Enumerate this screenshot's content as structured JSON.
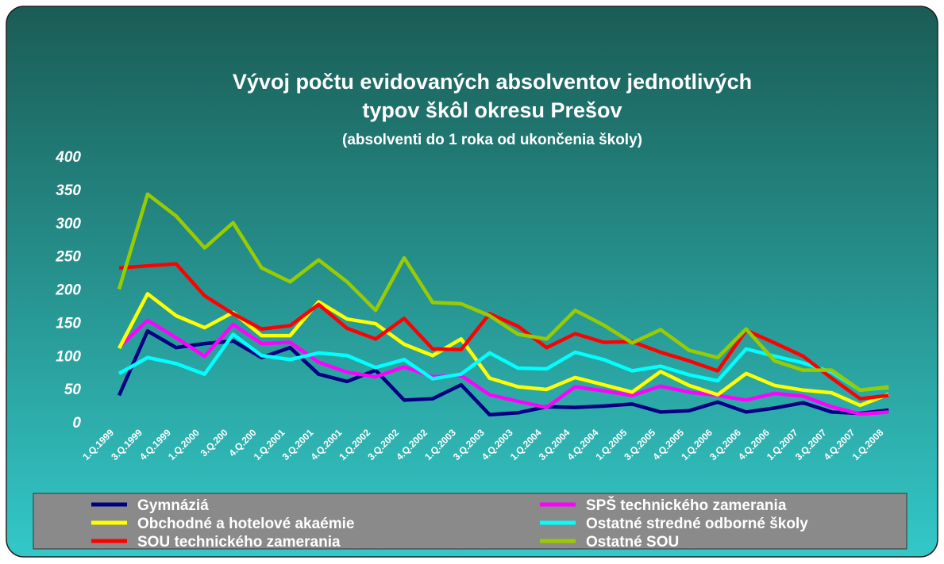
{
  "chart_data": {
    "type": "line",
    "title": [
      "Vývoj počtu evidovaných absolventov  jednotlivých",
      "typov škôl okresu Prešov"
    ],
    "subtitle": "(absolventi do 1 roka od ukončenia školy)",
    "categories": [
      "1.Q.1999",
      "3.Q.1999",
      "4.Q.1999",
      "1.Q.2000",
      "3.Q.200",
      "4.Q.200",
      "1.Q.2001",
      "3.Q.2001",
      "4.Q.2001",
      "1.Q.2002",
      "3.Q.2002",
      "4.Q.2002",
      "1.Q.2003",
      "3.Q.2003",
      "4.Q.2003",
      "1.Q.2004",
      "3.Q.2004",
      "4.Q.2004",
      "1.Q.2005",
      "3.Q.2005",
      "4.Q.2005",
      "1.Q.2006",
      "3.Q.2006",
      "4.Q.2006",
      "1.Q.2007",
      "3.Q.2007",
      "4.Q.2007",
      "1.Q.2008"
    ],
    "series": [
      {
        "name": "Gymnáziá",
        "color": "#000080",
        "values": [
          40,
          137,
          112,
          118,
          122,
          97,
          112,
          72,
          61,
          78,
          33,
          35,
          56,
          11,
          14,
          23,
          22,
          24,
          27,
          15,
          17,
          30,
          15,
          21,
          29,
          15,
          13,
          18
        ]
      },
      {
        "name": "SPŠ technického zamerania",
        "color": "#ff00ff",
        "values": [
          113,
          153,
          127,
          99,
          147,
          118,
          120,
          90,
          75,
          68,
          83,
          68,
          70,
          41,
          31,
          22,
          53,
          47,
          40,
          54,
          45,
          40,
          33,
          43,
          39,
          23,
          12,
          15
        ]
      },
      {
        "name": "Obchodné a hotelové akaémie",
        "color": "#ffff00",
        "values": [
          111,
          193,
          160,
          142,
          165,
          130,
          130,
          181,
          155,
          148,
          117,
          100,
          125,
          66,
          53,
          49,
          67,
          56,
          45,
          76,
          55,
          41,
          73,
          55,
          48,
          44,
          25,
          42
        ]
      },
      {
        "name": "Ostatné stredné odborné školy",
        "color": "#00ffff",
        "values": [
          73,
          97,
          88,
          72,
          132,
          100,
          94,
          104,
          100,
          82,
          94,
          65,
          72,
          104,
          81,
          80,
          105,
          94,
          77,
          84,
          71,
          62,
          110,
          99,
          89,
          75,
          48,
          52
        ]
      },
      {
        "name": "SOU technického zamerania",
        "color": "#ff0000",
        "values": [
          232,
          235,
          238,
          190,
          163,
          140,
          145,
          177,
          141,
          125,
          156,
          110,
          109,
          163,
          144,
          112,
          133,
          120,
          121,
          105,
          92,
          77,
          138,
          119,
          99,
          66,
          35,
          40
        ]
      },
      {
        "name": "Ostatné SOU",
        "color": "#99cc00",
        "values": [
          200,
          343,
          310,
          262,
          300,
          232,
          211,
          244,
          211,
          168,
          247,
          180,
          178,
          160,
          132,
          125,
          168,
          146,
          119,
          139,
          108,
          97,
          140,
          92,
          78,
          78,
          48,
          53
        ]
      }
    ],
    "ylim": [
      0,
      400
    ],
    "yticks": [
      0,
      50,
      100,
      150,
      200,
      250,
      300,
      350,
      400
    ]
  }
}
